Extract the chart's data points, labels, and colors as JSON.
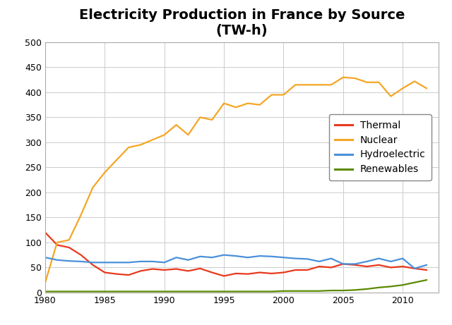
{
  "title": "Electricity Production in France by Source\n(TW-h)",
  "title_fontsize": 14,
  "title_fontweight": "bold",
  "years": [
    1980,
    1981,
    1982,
    1983,
    1984,
    1985,
    1986,
    1987,
    1988,
    1989,
    1990,
    1991,
    1992,
    1993,
    1994,
    1995,
    1996,
    1997,
    1998,
    1999,
    2000,
    2001,
    2002,
    2003,
    2004,
    2005,
    2006,
    2007,
    2008,
    2009,
    2010,
    2011,
    2012
  ],
  "thermal": [
    120,
    95,
    90,
    75,
    55,
    40,
    37,
    35,
    43,
    47,
    45,
    47,
    43,
    48,
    40,
    33,
    38,
    37,
    40,
    38,
    40,
    45,
    45,
    52,
    50,
    57,
    55,
    52,
    55,
    50,
    52,
    48,
    45
  ],
  "nuclear": [
    20,
    100,
    105,
    155,
    210,
    240,
    265,
    290,
    295,
    305,
    315,
    335,
    315,
    350,
    345,
    378,
    370,
    378,
    375,
    395,
    395,
    415,
    415,
    415,
    415,
    430,
    428,
    420,
    420,
    392,
    408,
    422,
    408
  ],
  "hydroelectric": [
    70,
    65,
    63,
    62,
    60,
    60,
    60,
    60,
    62,
    62,
    60,
    70,
    65,
    72,
    70,
    75,
    73,
    70,
    73,
    72,
    70,
    68,
    67,
    62,
    68,
    57,
    57,
    62,
    68,
    62,
    68,
    48,
    55
  ],
  "renewables": [
    2,
    2,
    2,
    2,
    2,
    2,
    2,
    2,
    2,
    2,
    2,
    2,
    2,
    2,
    2,
    2,
    2,
    2,
    2,
    2,
    3,
    3,
    3,
    3,
    4,
    4,
    5,
    7,
    10,
    12,
    15,
    20,
    25
  ],
  "thermal_color": "#e8391d",
  "nuclear_color": "#f4a623",
  "hydro_color": "#4a90d9",
  "renewables_color": "#5a8a00",
  "legend_labels": [
    "Thermal",
    "Nuclear",
    "Hydroelectric",
    "Renewables"
  ],
  "xlim": [
    1980,
    2013
  ],
  "ylim": [
    0,
    500
  ],
  "yticks": [
    0,
    50,
    100,
    150,
    200,
    250,
    300,
    350,
    400,
    450,
    500
  ],
  "xticks": [
    1980,
    1985,
    1990,
    1995,
    2000,
    2005,
    2010
  ],
  "grid_color": "#cccccc",
  "background_color": "#ffffff",
  "line_width": 1.6,
  "legend_fontsize": 10
}
